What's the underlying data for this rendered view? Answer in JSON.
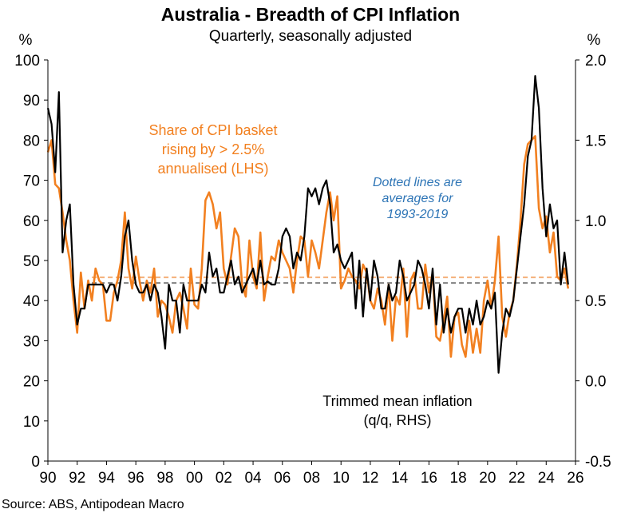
{
  "chart_data": {
    "type": "line",
    "title": "Australia - Breadth of CPI Inflation",
    "subtitle": "Quarterly, seasonally adjusted",
    "left_unit": "%",
    "right_unit": "%",
    "source": "Source: ABS, Antipodean Macro",
    "x_ticks": [
      "90",
      "92",
      "94",
      "96",
      "98",
      "00",
      "02",
      "04",
      "06",
      "08",
      "10",
      "12",
      "14",
      "16",
      "18",
      "20",
      "22",
      "24",
      "26"
    ],
    "xlim": [
      1990,
      2026
    ],
    "y_left": {
      "lim": [
        0,
        100
      ],
      "ticks": [
        "0",
        "10",
        "20",
        "30",
        "40",
        "50",
        "60",
        "70",
        "80",
        "90",
        "100"
      ]
    },
    "y_right": {
      "lim": [
        -0.5,
        2.0
      ],
      "ticks": [
        "-0.5",
        "0.0",
        "0.5",
        "1.0",
        "1.5",
        "2.0"
      ]
    },
    "annotations": {
      "share_label": [
        "Share of CPI basket",
        "rising by > 2.5%",
        "annualised (LHS)"
      ],
      "trimmed_label": [
        "Trimmed mean inflation",
        "(q/q, RHS)"
      ],
      "dotted_note": [
        "Dotted lines are",
        "averages for",
        "1993-2019"
      ]
    },
    "colors": {
      "share": "#F28020",
      "trimmed": "#000000",
      "share_avg": "#F5B07A",
      "trimmed_avg": "#808080",
      "note": "#2E75B6"
    },
    "series": [
      {
        "name": "Share of CPI basket rising by > 2.5% annualised (LHS)",
        "axis": "left",
        "average": 45.8,
        "start": 1990.0,
        "step": 0.25,
        "values": [
          77,
          80,
          69,
          68,
          62,
          55,
          50,
          40,
          32,
          47,
          38,
          45,
          40,
          48,
          45,
          44,
          35,
          35,
          42,
          45,
          50,
          62,
          48,
          43,
          51,
          45,
          40,
          45,
          42,
          48,
          36,
          40,
          39,
          36,
          32,
          40,
          42,
          38,
          33,
          48,
          39,
          38,
          48,
          65,
          67,
          64,
          58,
          62,
          48,
          44,
          51,
          58,
          56,
          44,
          41,
          55,
          46,
          43,
          57,
          40,
          46,
          51,
          50,
          55,
          52,
          50,
          48,
          42,
          50,
          56,
          55,
          46,
          55,
          52,
          48,
          55,
          62,
          67,
          60,
          66,
          43,
          45,
          48,
          46,
          45,
          43,
          49,
          47,
          40,
          38,
          43,
          40,
          34,
          44,
          30,
          41,
          39,
          48,
          31,
          45,
          47,
          38,
          38,
          49,
          42,
          47,
          31,
          30,
          35,
          41,
          26,
          36,
          37,
          29,
          26,
          35,
          27,
          33,
          27,
          40,
          45,
          38,
          45,
          56,
          36,
          31,
          37,
          40,
          49,
          60,
          74,
          79,
          80,
          81,
          63,
          58,
          61,
          52,
          57,
          46,
          45,
          48,
          43
        ]
      },
      {
        "name": "Trimmed mean inflation (q/q, RHS)",
        "axis": "right",
        "average": 0.61,
        "start": 1990.0,
        "step": 0.25,
        "values": [
          1.7,
          1.6,
          1.3,
          1.8,
          0.8,
          1.0,
          1.1,
          0.6,
          0.35,
          0.45,
          0.45,
          0.6,
          0.6,
          0.6,
          0.6,
          0.6,
          0.55,
          0.6,
          0.6,
          0.5,
          0.65,
          0.9,
          1.0,
          0.75,
          0.6,
          0.55,
          0.55,
          0.6,
          0.5,
          0.6,
          0.55,
          0.4,
          0.2,
          0.6,
          0.5,
          0.5,
          0.3,
          0.6,
          0.5,
          0.5,
          0.5,
          0.5,
          0.6,
          0.55,
          0.8,
          0.65,
          0.7,
          0.55,
          0.55,
          0.65,
          0.75,
          0.6,
          0.65,
          0.55,
          0.6,
          0.65,
          0.7,
          0.6,
          0.75,
          0.6,
          0.62,
          0.6,
          0.6,
          0.7,
          0.9,
          0.95,
          0.9,
          0.7,
          0.8,
          0.75,
          0.9,
          1.2,
          1.15,
          1.2,
          1.1,
          1.2,
          1.25,
          1.1,
          0.8,
          0.85,
          0.75,
          0.7,
          0.75,
          0.8,
          0.45,
          0.75,
          0.4,
          0.7,
          0.5,
          0.75,
          0.65,
          0.45,
          0.45,
          0.6,
          0.5,
          0.55,
          0.75,
          0.65,
          0.5,
          0.55,
          0.6,
          0.75,
          0.7,
          0.6,
          0.45,
          0.7,
          0.35,
          0.6,
          0.3,
          0.45,
          0.3,
          0.4,
          0.45,
          0.45,
          0.3,
          0.45,
          0.35,
          0.5,
          0.35,
          0.4,
          0.5,
          0.45,
          0.55,
          0.05,
          0.3,
          0.45,
          0.4,
          0.5,
          0.7,
          0.9,
          1.1,
          1.4,
          1.5,
          1.9,
          1.7,
          1.2,
          0.9,
          1.1,
          0.95,
          1.0,
          0.6,
          0.8,
          0.6
        ]
      }
    ]
  }
}
